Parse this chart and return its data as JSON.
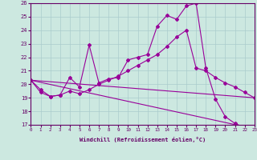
{
  "xlabel": "Windchill (Refroidissement éolien,°C)",
  "background_color": "#cce8e0",
  "grid_color": "#aacccc",
  "line_color": "#990099",
  "ylim": [
    17,
    26
  ],
  "xlim": [
    0,
    23
  ],
  "yticks": [
    17,
    18,
    19,
    20,
    21,
    22,
    23,
    24,
    25,
    26
  ],
  "xticks": [
    0,
    1,
    2,
    3,
    4,
    5,
    6,
    7,
    8,
    9,
    10,
    11,
    12,
    13,
    14,
    15,
    16,
    17,
    18,
    19,
    20,
    21,
    22,
    23
  ],
  "series": [
    {
      "x": [
        0,
        1,
        2,
        3,
        4,
        5,
        6,
        7,
        8,
        9,
        10,
        11,
        12,
        13,
        14,
        15,
        16,
        17,
        18,
        19,
        20,
        21,
        22,
        23
      ],
      "y": [
        20.3,
        19.6,
        19.1,
        19.2,
        20.5,
        19.8,
        22.9,
        20.1,
        20.4,
        20.5,
        21.8,
        22.0,
        22.2,
        24.3,
        25.1,
        24.8,
        25.8,
        26.0,
        21.2,
        18.9,
        17.6,
        17.1,
        16.8,
        16.7
      ]
    },
    {
      "x": [
        0,
        1,
        2,
        3,
        4,
        5,
        6,
        7,
        8,
        9,
        10,
        11,
        12,
        13,
        14,
        15,
        16,
        17,
        18,
        19,
        20,
        21,
        22,
        23
      ],
      "y": [
        20.3,
        19.4,
        19.1,
        19.2,
        19.5,
        19.3,
        19.6,
        20.0,
        20.3,
        20.6,
        21.0,
        21.4,
        21.8,
        22.2,
        22.8,
        23.5,
        24.0,
        21.2,
        21.0,
        20.5,
        20.1,
        19.8,
        19.4,
        19.0
      ]
    },
    {
      "x": [
        0,
        23
      ],
      "y": [
        20.3,
        19.0
      ]
    },
    {
      "x": [
        0,
        23
      ],
      "y": [
        20.3,
        16.7
      ]
    }
  ]
}
